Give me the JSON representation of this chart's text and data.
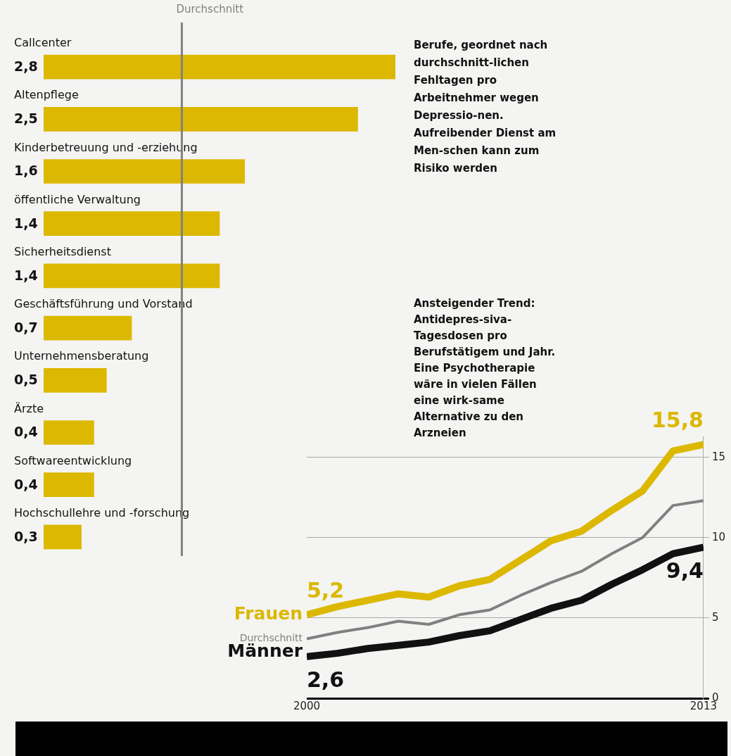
{
  "chart_data": [
    {
      "type": "bar",
      "orientation": "horizontal",
      "categories": [
        "Callcenter",
        "Altenpflege",
        "Kinderbetreuung und -erziehung",
        "öffentliche Verwaltung",
        "Sicherheitsdienst",
        "Geschäftsführung und Vorstand",
        "Unternehmensberatung",
        "Ärzte",
        "Softwareentwicklung",
        "Hochschullehre und -forschung"
      ],
      "values": [
        2.8,
        2.5,
        1.6,
        1.4,
        1.4,
        0.7,
        0.5,
        0.4,
        0.4,
        0.3
      ],
      "value_labels": [
        "2,8",
        "2,5",
        "1,6",
        "1,4",
        "1,4",
        "0,7",
        "0,5",
        "0,4",
        "0,4",
        "0,3"
      ],
      "color": "#dcb800",
      "ref_lines": [
        {
          "axis": "x",
          "value": 1.1,
          "label": "Durchschnitt",
          "color": "#808080"
        }
      ],
      "annotations": [
        "Berufe, geordnet nach durchschnitt-lichen Fehltagen pro Arbeitnehmer wegen Depressio-nen. Aufreibender Dienst am Men-schen kann zum Risiko werden"
      ],
      "tick_labels": false,
      "grid": false,
      "legend": false
    },
    {
      "type": "line",
      "x": [
        2000,
        2001,
        2002,
        2003,
        2004,
        2005,
        2006,
        2007,
        2008,
        2009,
        2010,
        2011,
        2012,
        2013
      ],
      "series": [
        {
          "name": "Frauen",
          "color": "#dcb800",
          "values": [
            5.2,
            5.7,
            6.1,
            6.5,
            6.3,
            7.0,
            7.4,
            8.6,
            9.8,
            10.4,
            11.7,
            12.9,
            15.4,
            15.8
          ],
          "value_labels": [
            "5,2",
            null,
            null,
            null,
            null,
            null,
            null,
            null,
            null,
            null,
            null,
            null,
            null,
            "15,8"
          ]
        },
        {
          "name": "Durchschnitt",
          "color": "#808080",
          "values": [
            3.7,
            4.1,
            4.4,
            4.8,
            4.6,
            5.2,
            5.5,
            6.4,
            7.2,
            7.9,
            9.0,
            10.0,
            12.0,
            12.3
          ]
        },
        {
          "name": "Männer",
          "color": "#111111",
          "values": [
            2.6,
            2.8,
            3.1,
            3.3,
            3.5,
            3.9,
            4.2,
            4.9,
            5.6,
            6.1,
            7.1,
            8.0,
            9.0,
            9.4
          ],
          "value_labels": [
            "2,6",
            null,
            null,
            null,
            null,
            null,
            null,
            null,
            null,
            null,
            null,
            null,
            null,
            "9,4"
          ]
        }
      ],
      "xlim": [
        2000,
        2013
      ],
      "xticks": [
        2000,
        2013
      ],
      "ylim": [
        0,
        16.3
      ],
      "yticks": [
        0,
        5,
        10,
        15
      ],
      "grid": "y",
      "legend": false,
      "marker": "none",
      "line_style": "solid",
      "annotations": [
        "Ansteigender Trend: Antidepres-siva-Tagesdosen pro Berufstätigem und Jahr. Eine Psychotherapie wäre in vielen Fällen eine wirk-same Alternative zu den Arzneien"
      ]
    }
  ]
}
